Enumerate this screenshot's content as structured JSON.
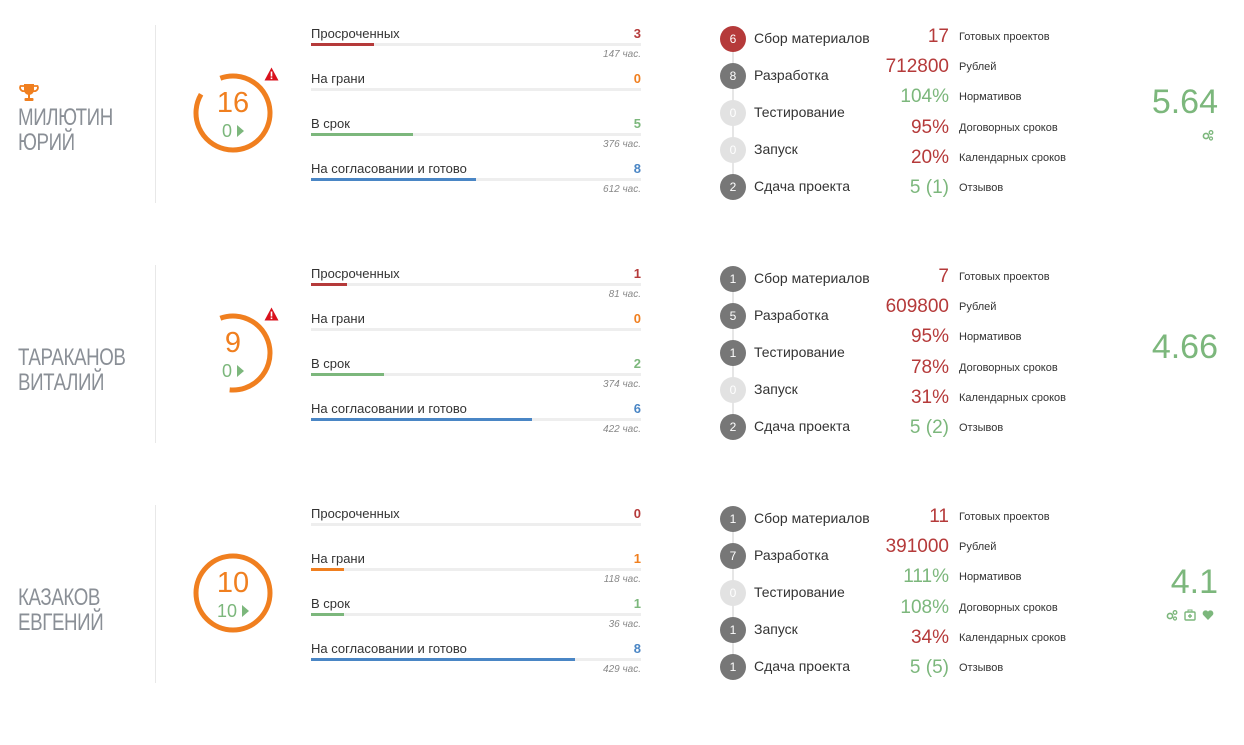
{
  "colors": {
    "orange": "#f07f1f",
    "red": "#b53a3a",
    "green": "#7cb77c",
    "blue": "#4a86c5",
    "darkgray": "#777777",
    "lightgray": "#e2e2e2",
    "warn": "#d9111c"
  },
  "employees": [
    {
      "name_line1": "МИЛЮТИН",
      "name_line2": "ЮРИЙ",
      "trophy": true,
      "total": "16",
      "sub": "0",
      "ring_fraction": 0.89,
      "warning": true,
      "bars": [
        {
          "label": "Просроченных",
          "count": "3",
          "color": "red",
          "fraction": 0.19,
          "hours": "147 час."
        },
        {
          "label": "На грани",
          "count": "0",
          "color": "orange",
          "fraction": 0,
          "hours": ""
        },
        {
          "label": "В срок",
          "count": "5",
          "color": "green",
          "fraction": 0.31,
          "hours": "376 час."
        },
        {
          "label": "На согласовании и готово",
          "count": "8",
          "color": "blue",
          "fraction": 0.5,
          "hours": "612 час."
        }
      ],
      "stages": [
        {
          "count": "6",
          "label": "Сбор материалов",
          "style": "red"
        },
        {
          "count": "8",
          "label": "Разработка",
          "style": "darkgray"
        },
        {
          "count": "0",
          "label": "Тестирование",
          "style": "lightgray"
        },
        {
          "count": "0",
          "label": "Запуск",
          "style": "lightgray"
        },
        {
          "count": "2",
          "label": "Сдача проекта",
          "style": "darkgray"
        }
      ],
      "metrics": [
        {
          "value": "17",
          "label": "Готовых проектов",
          "color": "red"
        },
        {
          "value": "712800",
          "label": "Рублей",
          "color": "red"
        },
        {
          "value": "104%",
          "label": "Нормативов",
          "color": "green"
        },
        {
          "value": "95%",
          "label": "Договорных сроков",
          "color": "red"
        },
        {
          "value": "20%",
          "label": "Календарных сроков",
          "color": "red"
        },
        {
          "value": "5 (1)",
          "label": "Отзывов",
          "color": "green"
        }
      ],
      "score": "5.64",
      "score_icons": [
        "gears-icon"
      ]
    },
    {
      "name_line1": "ТАРАКАНОВ",
      "name_line2": "ВИТАЛИЙ",
      "trophy": false,
      "total": "9",
      "sub": "0",
      "ring_fraction": 0.57,
      "warning": true,
      "bars": [
        {
          "label": "Просроченных",
          "count": "1",
          "color": "red",
          "fraction": 0.11,
          "hours": "81 час."
        },
        {
          "label": "На грани",
          "count": "0",
          "color": "orange",
          "fraction": 0,
          "hours": ""
        },
        {
          "label": "В срок",
          "count": "2",
          "color": "green",
          "fraction": 0.22,
          "hours": "374 час."
        },
        {
          "label": "На согласовании и готово",
          "count": "6",
          "color": "blue",
          "fraction": 0.67,
          "hours": "422 час."
        }
      ],
      "stages": [
        {
          "count": "1",
          "label": "Сбор материалов",
          "style": "darkgray"
        },
        {
          "count": "5",
          "label": "Разработка",
          "style": "darkgray"
        },
        {
          "count": "1",
          "label": "Тестирование",
          "style": "darkgray"
        },
        {
          "count": "0",
          "label": "Запуск",
          "style": "lightgray"
        },
        {
          "count": "2",
          "label": "Сдача проекта",
          "style": "darkgray"
        }
      ],
      "metrics": [
        {
          "value": "7",
          "label": "Готовых проектов",
          "color": "red"
        },
        {
          "value": "609800",
          "label": "Рублей",
          "color": "red"
        },
        {
          "value": "95%",
          "label": "Нормативов",
          "color": "red"
        },
        {
          "value": "78%",
          "label": "Договорных сроков",
          "color": "red"
        },
        {
          "value": "31%",
          "label": "Календарных сроков",
          "color": "red"
        },
        {
          "value": "5 (2)",
          "label": "Отзывов",
          "color": "green"
        }
      ],
      "score": "4.66",
      "score_icons": []
    },
    {
      "name_line1": "КАЗАКОВ",
      "name_line2": "ЕВГЕНИЙ",
      "trophy": false,
      "total": "10",
      "sub": "10",
      "ring_fraction": 1.0,
      "warning": false,
      "bars": [
        {
          "label": "Просроченных",
          "count": "0",
          "color": "red",
          "fraction": 0,
          "hours": ""
        },
        {
          "label": "На грани",
          "count": "1",
          "color": "orange",
          "fraction": 0.1,
          "hours": "118 час."
        },
        {
          "label": "В срок",
          "count": "1",
          "color": "green",
          "fraction": 0.1,
          "hours": "36 час."
        },
        {
          "label": "На согласовании и готово",
          "count": "8",
          "color": "blue",
          "fraction": 0.8,
          "hours": "429 час."
        }
      ],
      "stages": [
        {
          "count": "1",
          "label": "Сбор материалов",
          "style": "darkgray"
        },
        {
          "count": "7",
          "label": "Разработка",
          "style": "darkgray"
        },
        {
          "count": "0",
          "label": "Тестирование",
          "style": "lightgray"
        },
        {
          "count": "1",
          "label": "Запуск",
          "style": "darkgray"
        },
        {
          "count": "1",
          "label": "Сдача проекта",
          "style": "darkgray"
        }
      ],
      "metrics": [
        {
          "value": "11",
          "label": "Готовых проектов",
          "color": "red"
        },
        {
          "value": "391000",
          "label": "Рублей",
          "color": "red"
        },
        {
          "value": "111%",
          "label": "Нормативов",
          "color": "green"
        },
        {
          "value": "108%",
          "label": "Договорных сроков",
          "color": "green"
        },
        {
          "value": "34%",
          "label": "Календарных сроков",
          "color": "red"
        },
        {
          "value": "5 (5)",
          "label": "Отзывов",
          "color": "green"
        }
      ],
      "score": "4.1",
      "score_icons": [
        "gears-icon",
        "medkit-icon",
        "heart-icon"
      ]
    }
  ]
}
